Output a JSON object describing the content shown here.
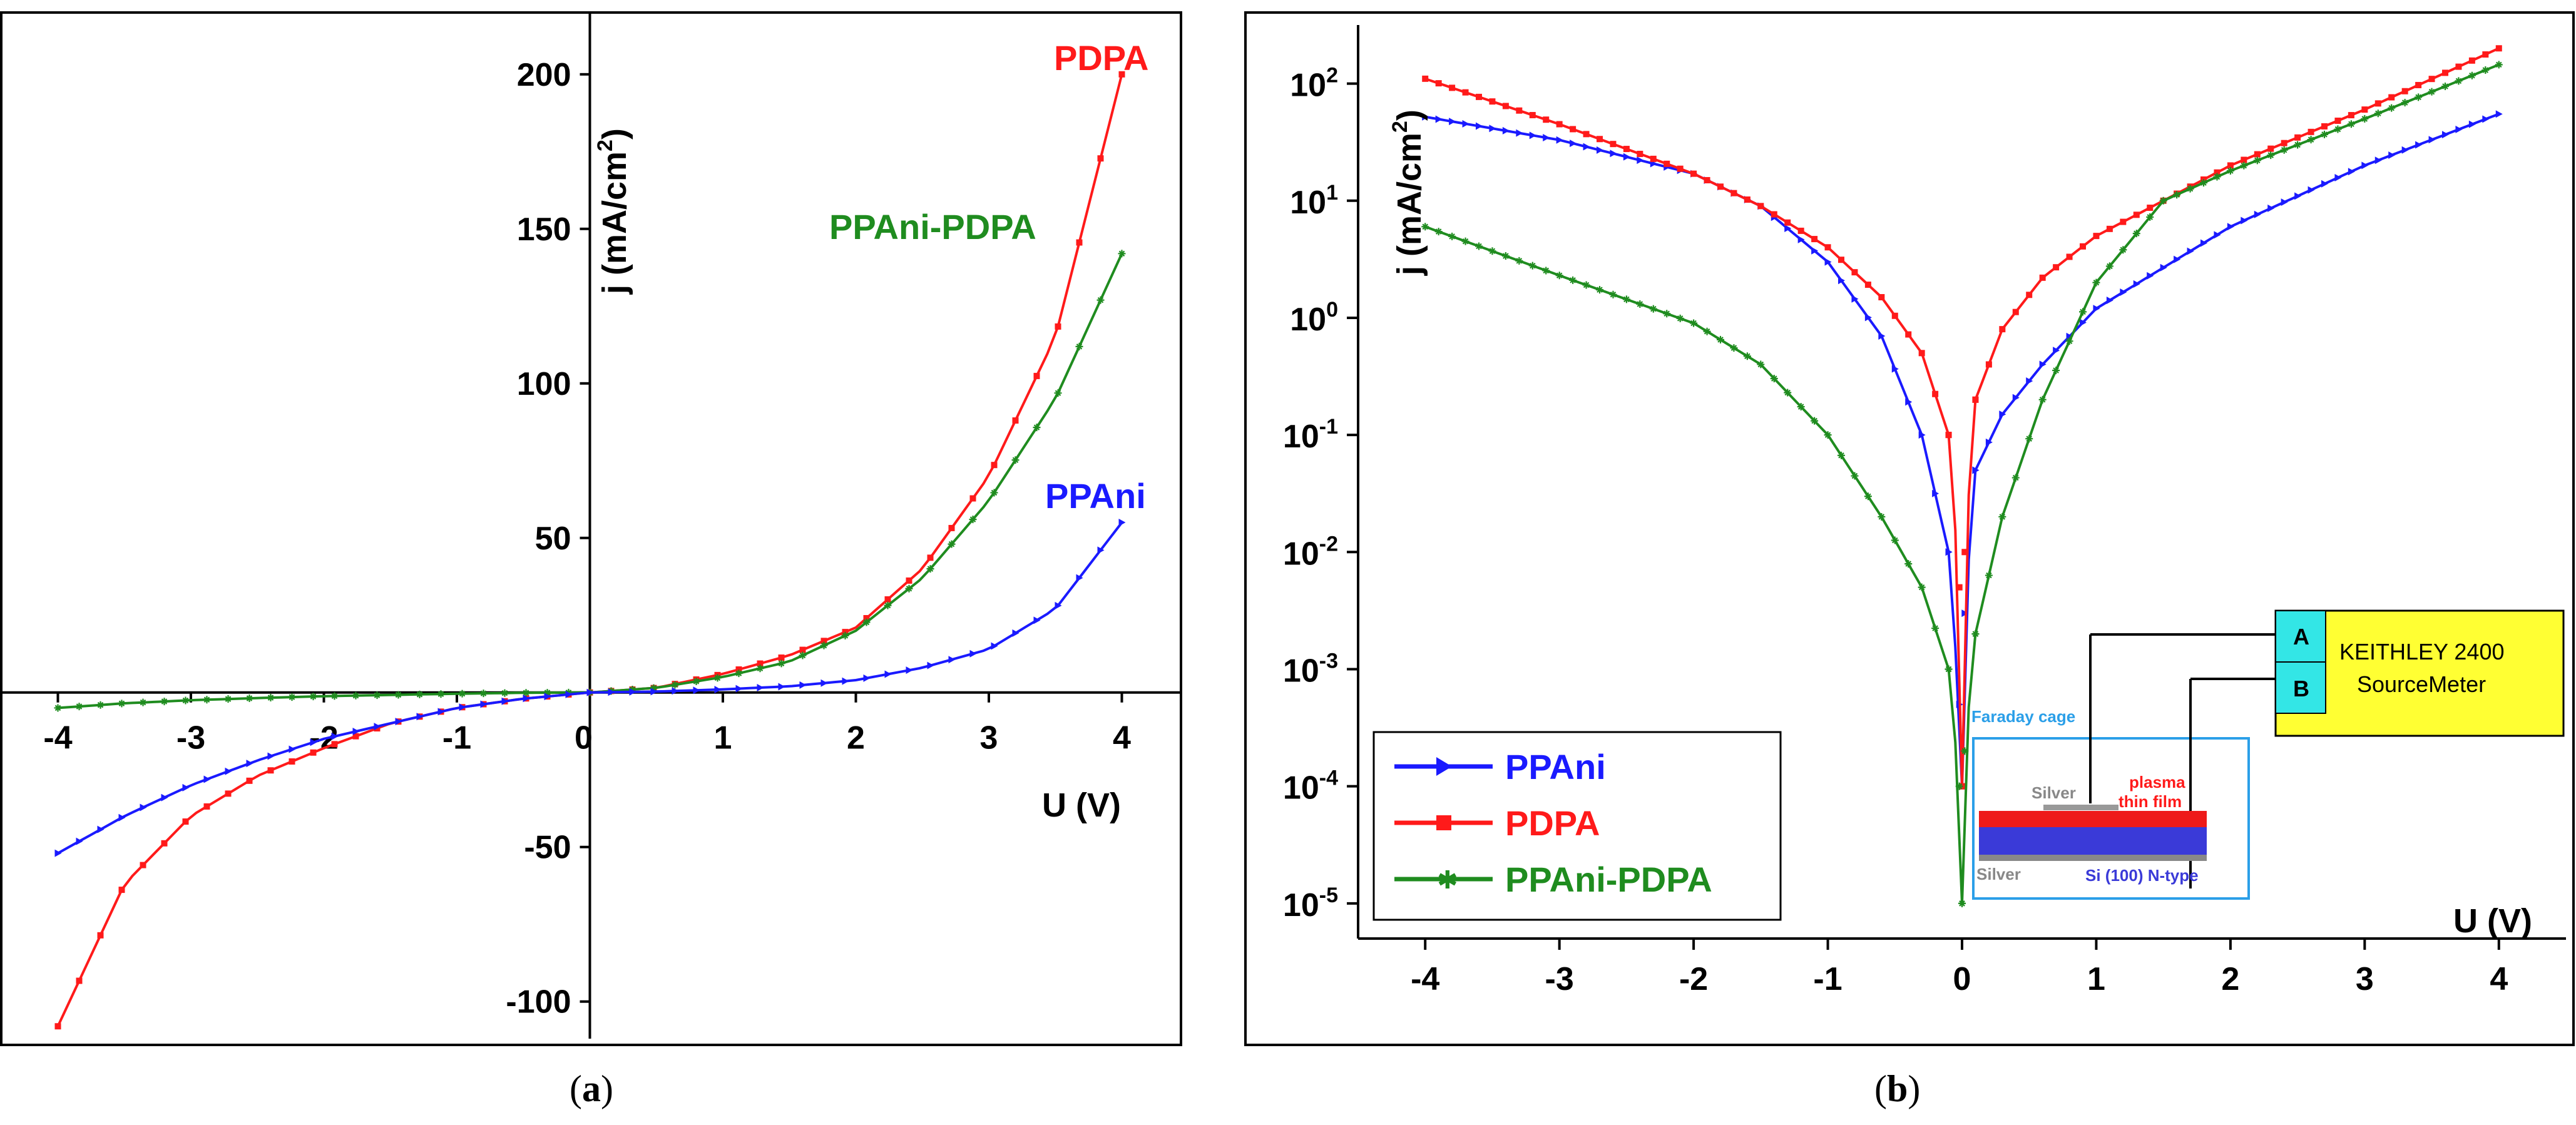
{
  "colors": {
    "PPAni": "#1a1aff",
    "PDPA": "#ff1a1a",
    "PPAni-PDPA": "#1f8c1f",
    "cage": "#2b9fe8",
    "keithley_bg": "#ffff33",
    "ab_bg": "#33e6e6"
  },
  "chart_data": [
    {
      "panel": "(a)",
      "type": "line",
      "xlabel": "U (V)",
      "ylabel": "j (mA/cm",
      "ylabel_sup": "2",
      "ylabel_end": ")",
      "xlim": [
        -4.2,
        4.2
      ],
      "ylim": [
        -112,
        220
      ],
      "xticks": [
        -4,
        -3,
        -2,
        -1,
        0,
        1,
        2,
        3,
        4
      ],
      "xtick_labels": [
        "-4",
        "-3",
        "-2",
        "-1",
        "0",
        "1",
        "2",
        "3",
        "4"
      ],
      "yticks": [
        -100,
        -50,
        0,
        50,
        100,
        150,
        200
      ],
      "ytick_labels": [
        "-100",
        "-50",
        "0",
        "50",
        "100",
        "150",
        "200"
      ],
      "series": [
        {
          "name": "PDPA",
          "x": [
            -4,
            -3.5,
            -3,
            -2.5,
            -2,
            -1.5,
            -1,
            -0.5,
            0,
            0.5,
            1,
            1.5,
            2,
            2.5,
            3,
            3.5,
            4
          ],
          "values": [
            -108,
            -62,
            -40,
            -27,
            -18,
            -10,
            -5,
            -2,
            0,
            1.5,
            6,
            12,
            21,
            40,
            70,
            115,
            200
          ]
        },
        {
          "name": "PPAni-PDPA",
          "x": [
            -4,
            -3.5,
            -3,
            -2.5,
            -2,
            -1.5,
            -1,
            -0.5,
            0,
            0.5,
            1,
            1.5,
            2,
            2.5,
            3,
            3.5,
            4
          ],
          "values": [
            -5,
            -3.5,
            -2.5,
            -1.8,
            -1.2,
            -0.8,
            -0.4,
            -0.1,
            0,
            1.5,
            5,
            10,
            20,
            37,
            62,
            95,
            142
          ]
        },
        {
          "name": "PPAni",
          "x": [
            -4,
            -3.5,
            -3,
            -2.5,
            -2,
            -1.5,
            -1,
            -0.5,
            0,
            0.5,
            1,
            1.5,
            2,
            2.5,
            3,
            3.5,
            4
          ],
          "values": [
            -52,
            -40,
            -30,
            -22,
            -15,
            -10,
            -5,
            -2,
            0,
            0.3,
            1,
            2,
            4,
            8,
            14,
            27,
            55
          ]
        }
      ],
      "annotations": [
        "PDPA",
        "PPAni-PDPA",
        "PPAni"
      ]
    },
    {
      "panel": "(b)",
      "type": "line",
      "yscale": "log",
      "xlabel": "U (V)",
      "ylabel": "j (mA/cm",
      "ylabel_sup": "2",
      "ylabel_end": ")",
      "xlim": [
        -4.5,
        4.5
      ],
      "ylim_exp": [
        -5.3,
        2.5
      ],
      "xticks": [
        -4,
        -3,
        -2,
        -1,
        0,
        1,
        2,
        3,
        4
      ],
      "xtick_labels": [
        "-4",
        "-3",
        "-2",
        "-1",
        "0",
        "1",
        "2",
        "3",
        "4"
      ],
      "yticks_exp": [
        2,
        1,
        0,
        -1,
        -2,
        -3,
        -4,
        -5
      ],
      "ytick_base": [
        "10",
        "10",
        "10",
        "10",
        "10",
        "10",
        "10",
        "10"
      ],
      "ytick_sup": [
        "2",
        "1",
        "0",
        "-1",
        "-2",
        "-3",
        "-4",
        "-5"
      ],
      "series": [
        {
          "name": "PPAni",
          "x": [
            -4,
            -3,
            -2,
            -1.5,
            -1,
            -0.6,
            -0.3,
            -0.1,
            -0.02,
            0,
            0.02,
            0.1,
            0.3,
            0.6,
            1,
            2,
            3,
            4
          ],
          "values": [
            52,
            33,
            17,
            9,
            3,
            0.7,
            0.1,
            0.01,
            0.0005,
            0.0001,
            0.003,
            0.05,
            0.15,
            0.4,
            1.2,
            6,
            20,
            55
          ]
        },
        {
          "name": "PDPA",
          "x": [
            -4,
            -3,
            -2,
            -1.5,
            -1,
            -0.6,
            -0.3,
            -0.1,
            -0.02,
            0,
            0.02,
            0.1,
            0.3,
            0.6,
            1,
            2,
            3,
            4
          ],
          "values": [
            110,
            45,
            17,
            9,
            4,
            1.5,
            0.5,
            0.1,
            0.005,
            0.0001,
            0.01,
            0.2,
            0.8,
            2.2,
            5,
            20,
            60,
            200
          ]
        },
        {
          "name": "PPAni-PDPA",
          "x": [
            -4,
            -3,
            -2,
            -1.5,
            -1,
            -0.6,
            -0.3,
            -0.1,
            -0.02,
            0,
            0.02,
            0.1,
            0.3,
            0.6,
            1,
            1.5,
            2,
            3,
            4
          ],
          "values": [
            6,
            2.3,
            0.9,
            0.4,
            0.1,
            0.02,
            0.005,
            0.001,
            0.0001,
            1e-05,
            0.0002,
            0.002,
            0.02,
            0.2,
            2,
            10,
            18,
            50,
            145
          ]
        }
      ],
      "legend": [
        "PPAni",
        "PDPA",
        "PPAni-PDPA"
      ],
      "legend_placement": "bottom-left",
      "inset": {
        "cage": "Faraday cage",
        "silver_top": "Silver",
        "film": "plasma thin film",
        "silver_bottom": "Silver",
        "substrate": "Si (100) N-type",
        "terminal_a": "A",
        "terminal_b": "B",
        "instrument_line1": "KEITHLEY 2400",
        "instrument_line2": "SourceMeter"
      }
    }
  ],
  "captions": {
    "a_open": "(",
    "a_letter": "a",
    "a_close": ")",
    "b_open": "(",
    "b_letter": "b",
    "b_close": ")"
  }
}
